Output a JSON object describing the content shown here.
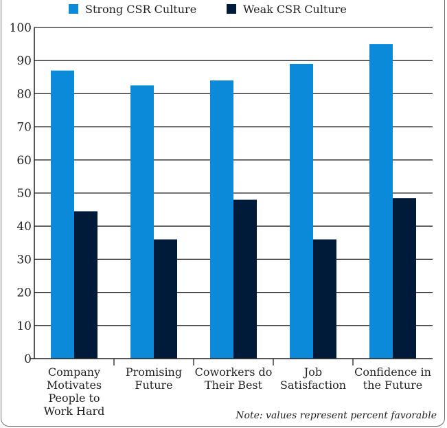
{
  "chart_data": {
    "type": "bar",
    "categories": [
      [
        "Company",
        "Motivates",
        "People to",
        "Work Hard"
      ],
      [
        "Promising",
        "Future"
      ],
      [
        "Coworkers do",
        "Their Best"
      ],
      [
        "Job",
        "Satisfaction"
      ],
      [
        "Confidence in",
        "the Future"
      ]
    ],
    "series": [
      {
        "name": "Strong CSR Culture",
        "color": "#0a8ad8",
        "values": [
          87,
          82.5,
          84,
          89,
          95
        ]
      },
      {
        "name": "Weak CSR Culture",
        "color": "#001a3a",
        "values": [
          44.5,
          36,
          48,
          36,
          48.5
        ]
      }
    ],
    "y_ticks": [
      0,
      10,
      20,
      30,
      40,
      50,
      60,
      70,
      80,
      90,
      100
    ],
    "ylim": [
      0,
      100
    ],
    "grid": true,
    "legend": "top",
    "note": "Note: values represent percent favorable"
  }
}
